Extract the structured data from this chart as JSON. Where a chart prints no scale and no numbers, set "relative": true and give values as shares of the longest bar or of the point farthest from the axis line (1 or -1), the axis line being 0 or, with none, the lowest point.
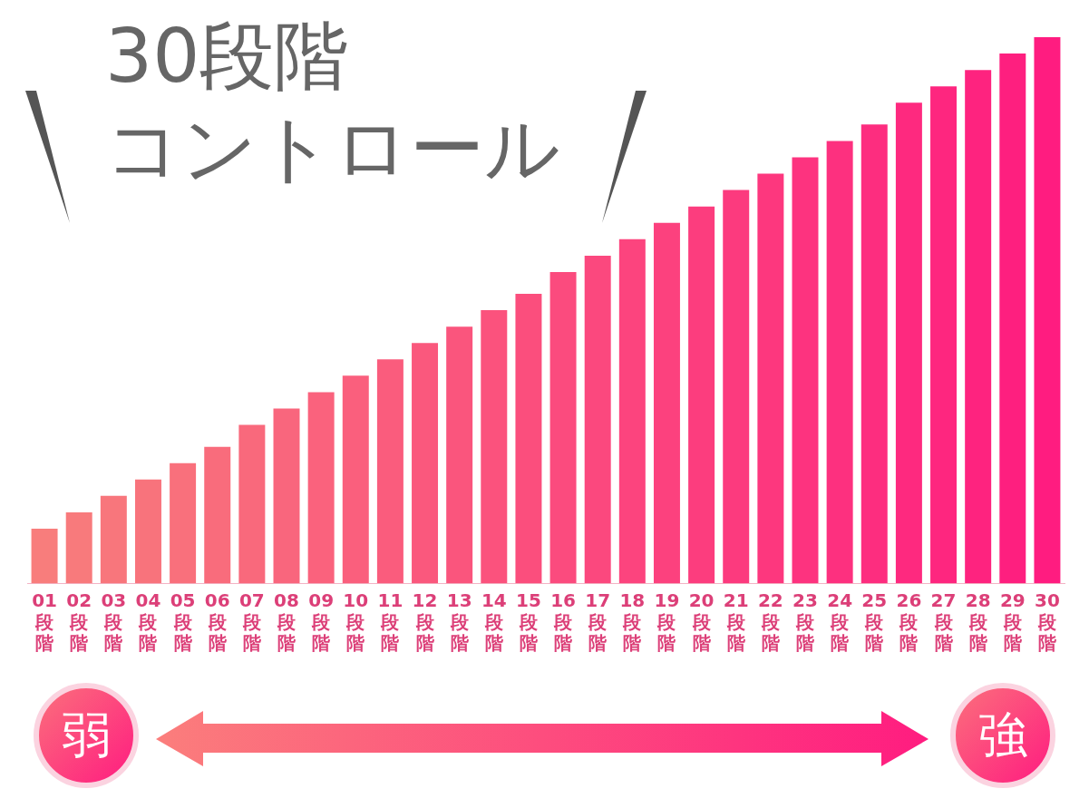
{
  "chart_data": {
    "type": "bar",
    "title": "30段階",
    "subtitle": "コントロール",
    "relative": true,
    "categories": [
      "01段階",
      "02段階",
      "03段階",
      "04段階",
      "05段階",
      "06段階",
      "07段階",
      "08段階",
      "09段階",
      "10段階",
      "11段階",
      "12段階",
      "13段階",
      "14段階",
      "15段階",
      "16段階",
      "17段階",
      "18段階",
      "19段階",
      "20段階",
      "21段階",
      "22段階",
      "23段階",
      "24段階",
      "25段階",
      "26段階",
      "27段階",
      "28段階",
      "29段階",
      "30段階"
    ],
    "values": [
      0.1,
      0.13,
      0.16,
      0.19,
      0.22,
      0.25,
      0.29,
      0.32,
      0.35,
      0.38,
      0.41,
      0.44,
      0.47,
      0.5,
      0.53,
      0.57,
      0.6,
      0.63,
      0.66,
      0.69,
      0.72,
      0.75,
      0.78,
      0.81,
      0.84,
      0.88,
      0.91,
      0.94,
      0.97,
      1
    ],
    "colors": [
      "#f87d7c",
      "#f87a7c",
      "#f8767c",
      "#f8737c",
      "#f9707c",
      "#f96c7c",
      "#f9697c",
      "#f9667d",
      "#fa627d",
      "#fa5f7d",
      "#fa5c7d",
      "#fa587d",
      "#fa557d",
      "#fb527d",
      "#fb4e7d",
      "#fb4b7e",
      "#fb487e",
      "#fc447e",
      "#fc417e",
      "#fc3d7e",
      "#fc3a7e",
      "#fd377e",
      "#fd337f",
      "#fd307f",
      "#fd2d7f",
      "#fe297f",
      "#fe267f",
      "#fe237f",
      "#fe1f7f",
      "#ff1c80"
    ],
    "annotations": [
      "弱",
      "強"
    ]
  }
}
